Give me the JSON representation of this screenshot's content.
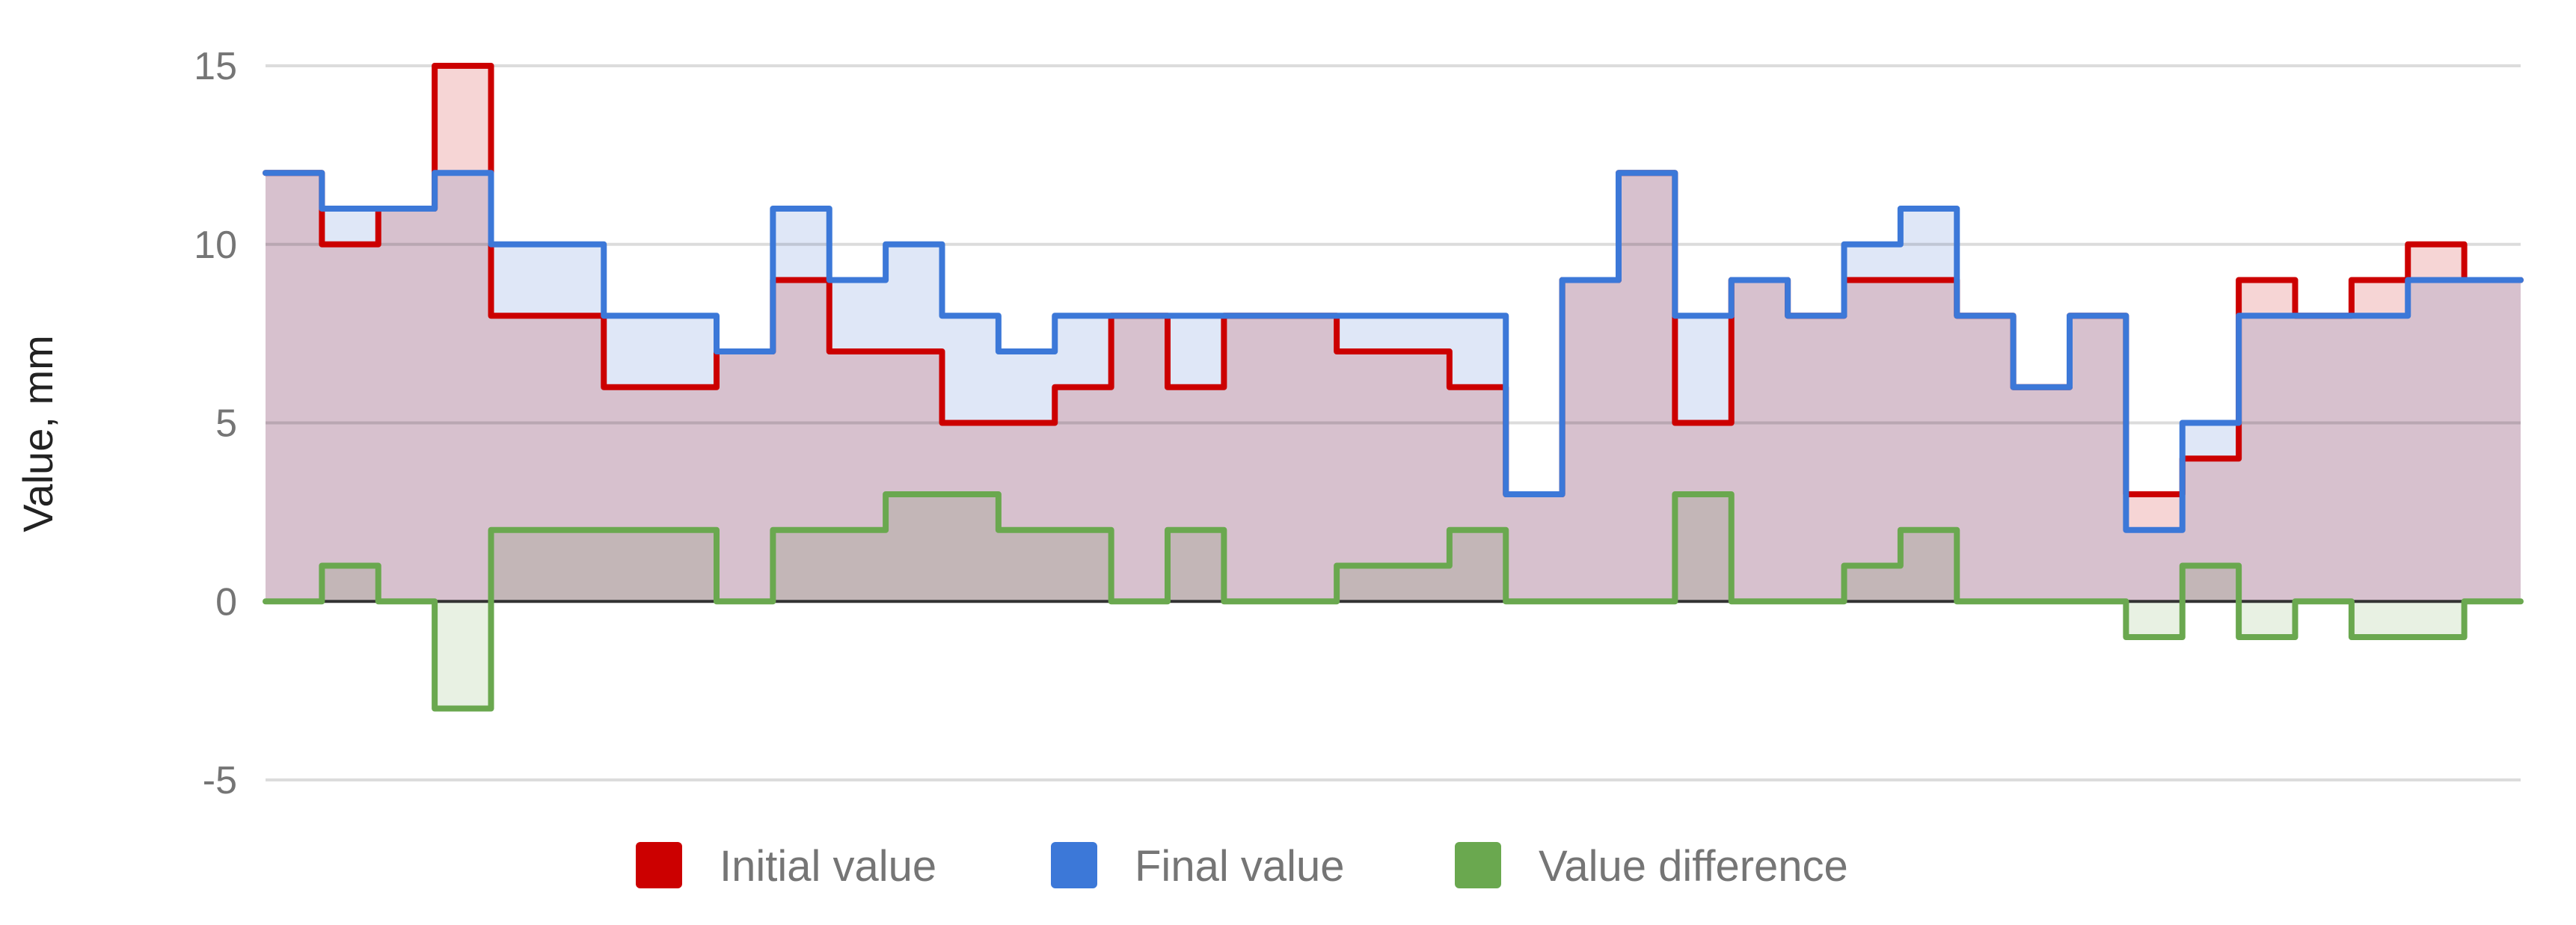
{
  "chart_data": {
    "type": "area",
    "step": true,
    "ylabel": "Value, mm",
    "xlabel": "",
    "ylim": [
      -5,
      15
    ],
    "yticks": [
      -5,
      0,
      5,
      10,
      15
    ],
    "ytick_labels": [
      "-5",
      "0",
      "5",
      "10",
      "15"
    ],
    "grid": true,
    "legend_position": "bottom",
    "x_count": 40,
    "series": [
      {
        "name": "Initial value",
        "color": "#cc0000",
        "fill": "#efb2b2",
        "values": [
          12,
          10,
          11,
          15,
          8,
          8,
          6,
          6,
          7,
          9,
          7,
          7,
          5,
          5,
          6,
          8,
          6,
          8,
          8,
          7,
          7,
          6,
          3,
          9,
          12,
          5,
          9,
          8,
          9,
          9,
          8,
          6,
          8,
          3,
          4,
          9,
          8,
          9,
          10,
          9
        ]
      },
      {
        "name": "Final value",
        "color": "#3c78d8",
        "fill": "#c5d4f0",
        "values": [
          12,
          11,
          11,
          12,
          10,
          10,
          8,
          8,
          7,
          11,
          9,
          10,
          8,
          7,
          8,
          8,
          8,
          8,
          8,
          8,
          8,
          8,
          3,
          9,
          12,
          8,
          9,
          8,
          10,
          11,
          8,
          6,
          8,
          2,
          5,
          8,
          8,
          8,
          9,
          9
        ]
      },
      {
        "name": "Value difference",
        "color": "#6aa84f",
        "fill": "#d5e6cc",
        "values": [
          0,
          1,
          0,
          -3,
          2,
          2,
          2,
          2,
          0,
          2,
          2,
          3,
          3,
          2,
          2,
          0,
          2,
          0,
          0,
          1,
          1,
          2,
          0,
          0,
          0,
          3,
          0,
          0,
          1,
          2,
          0,
          0,
          0,
          -1,
          1,
          -1,
          0,
          -1,
          -1,
          0
        ]
      }
    ]
  }
}
